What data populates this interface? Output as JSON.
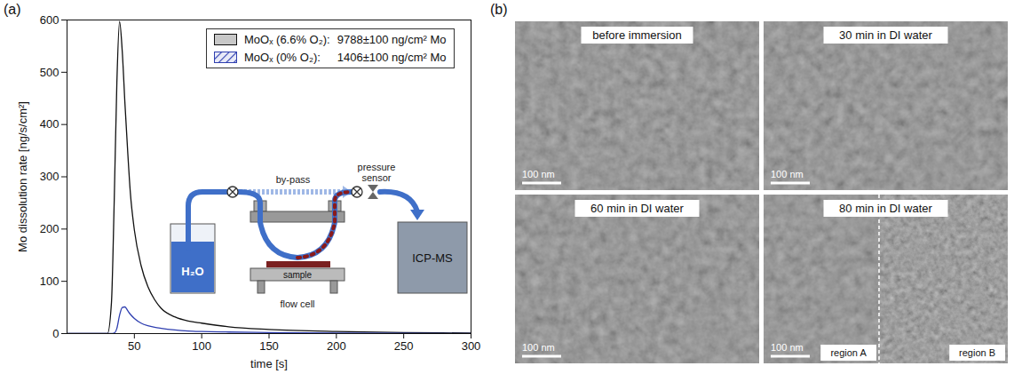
{
  "chart_data": {
    "type": "area",
    "panel_label": "(a)",
    "x_label": "time [s]",
    "y_label": "Mo dissolution rate [ng/s/cm²]",
    "x": [
      0,
      30,
      33,
      35,
      37,
      39,
      41,
      43,
      45,
      47,
      50,
      55,
      60,
      65,
      70,
      80,
      90,
      100,
      120,
      150,
      200,
      250,
      300
    ],
    "series": [
      {
        "name": "MoOₓ (6.6% O₂):",
        "legend_value": "9788±100 ng/cm² Mo",
        "color": "#c8c8c8",
        "values": [
          0,
          0,
          60,
          250,
          480,
          597,
          540,
          440,
          350,
          270,
          198,
          130,
          90,
          65,
          48,
          32,
          24,
          20,
          13,
          8,
          4,
          2,
          1
        ]
      },
      {
        "name": "MoOₓ (0% O₂):",
        "legend_value": "1406±100 ng/cm² Mo",
        "color": "#2f3fb0",
        "values": [
          0,
          0,
          0,
          1,
          10,
          35,
          50,
          51,
          44,
          37,
          29,
          20,
          15,
          12,
          10,
          7,
          5,
          4,
          3,
          2,
          1,
          0.5,
          0.2
        ]
      }
    ],
    "xlim": [
      0,
      300
    ],
    "xticks": [
      50,
      100,
      150,
      200,
      250,
      300
    ],
    "ylim": [
      0,
      600
    ],
    "yticks": [
      0,
      100,
      200,
      300,
      400,
      500,
      600
    ],
    "grid": false,
    "legend": "upper right",
    "inset": {
      "reservoir": "H₂O",
      "bypass": "by-pass",
      "sensor": "pressure sensor",
      "sample": "sample",
      "cell": "flow cell",
      "detector": "ICP-MS"
    }
  },
  "micrographs": {
    "panel_label": "(b)",
    "images": [
      {
        "title": "before immersion",
        "scale_bar": "100 nm"
      },
      {
        "title": "30 min in DI water",
        "scale_bar": "100 nm"
      },
      {
        "title": "60 min in DI water",
        "scale_bar": "100 nm"
      },
      {
        "title": "80 min in DI water",
        "scale_bar": "100 nm",
        "regions": [
          "region A",
          "region B"
        ]
      }
    ]
  }
}
